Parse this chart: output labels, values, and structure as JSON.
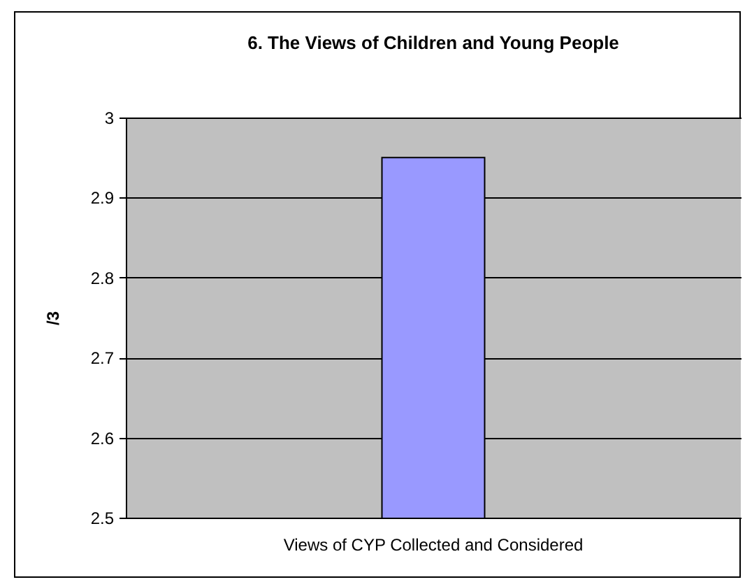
{
  "chart_data": {
    "type": "bar",
    "title": "6. The Views of Children and Young People",
    "ylabel": "/3",
    "categories": [
      "Views of CYP Collected and Considered"
    ],
    "values": [
      2.95
    ],
    "color": "#9999ff",
    "ylim": [
      2.5,
      3
    ],
    "yticks": [
      2.5,
      2.6,
      2.7,
      2.8,
      2.9,
      3
    ],
    "grid": "y"
  }
}
